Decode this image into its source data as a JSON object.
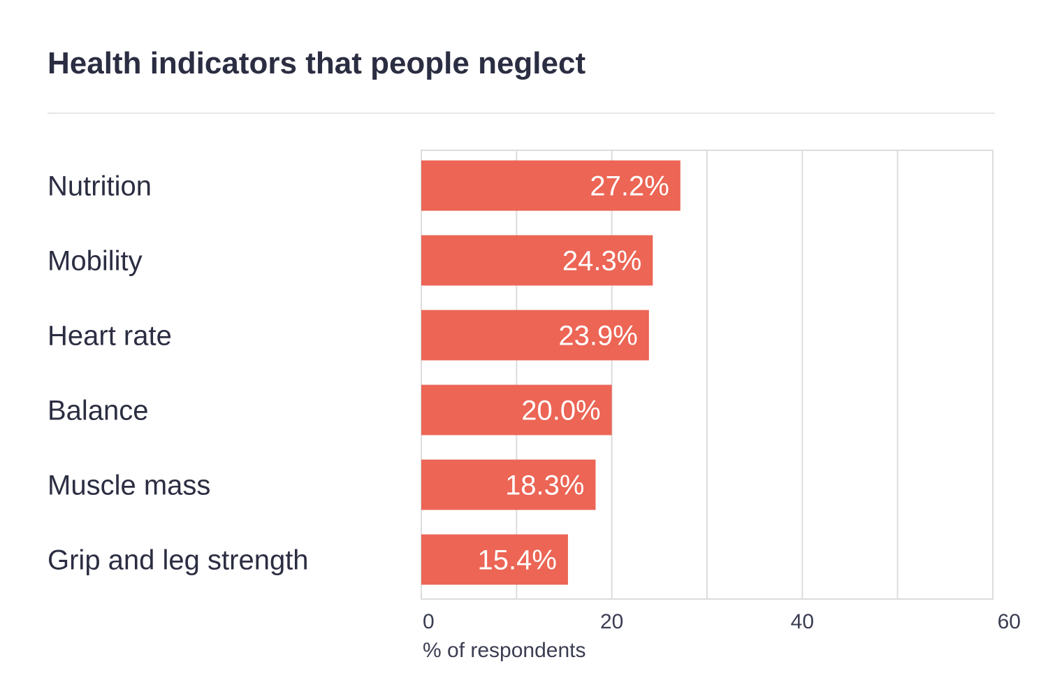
{
  "chart_data": {
    "type": "bar",
    "orientation": "horizontal",
    "title": "Health indicators that people neglect",
    "categories": [
      "Nutrition",
      "Mobility",
      "Heart rate",
      "Balance",
      "Muscle mass",
      "Grip and leg strength"
    ],
    "values": [
      27.2,
      24.3,
      23.9,
      20.0,
      18.3,
      15.4
    ],
    "value_labels": [
      "27.2%",
      "24.3%",
      "23.9%",
      "20.0%",
      "18.3%",
      "15.4%"
    ],
    "xlabel": "% of respondents",
    "ylabel": "",
    "xlim": [
      0,
      60
    ],
    "xticks": [
      0,
      20,
      40,
      60
    ],
    "grid": true,
    "bar_color": "#ec6555"
  }
}
